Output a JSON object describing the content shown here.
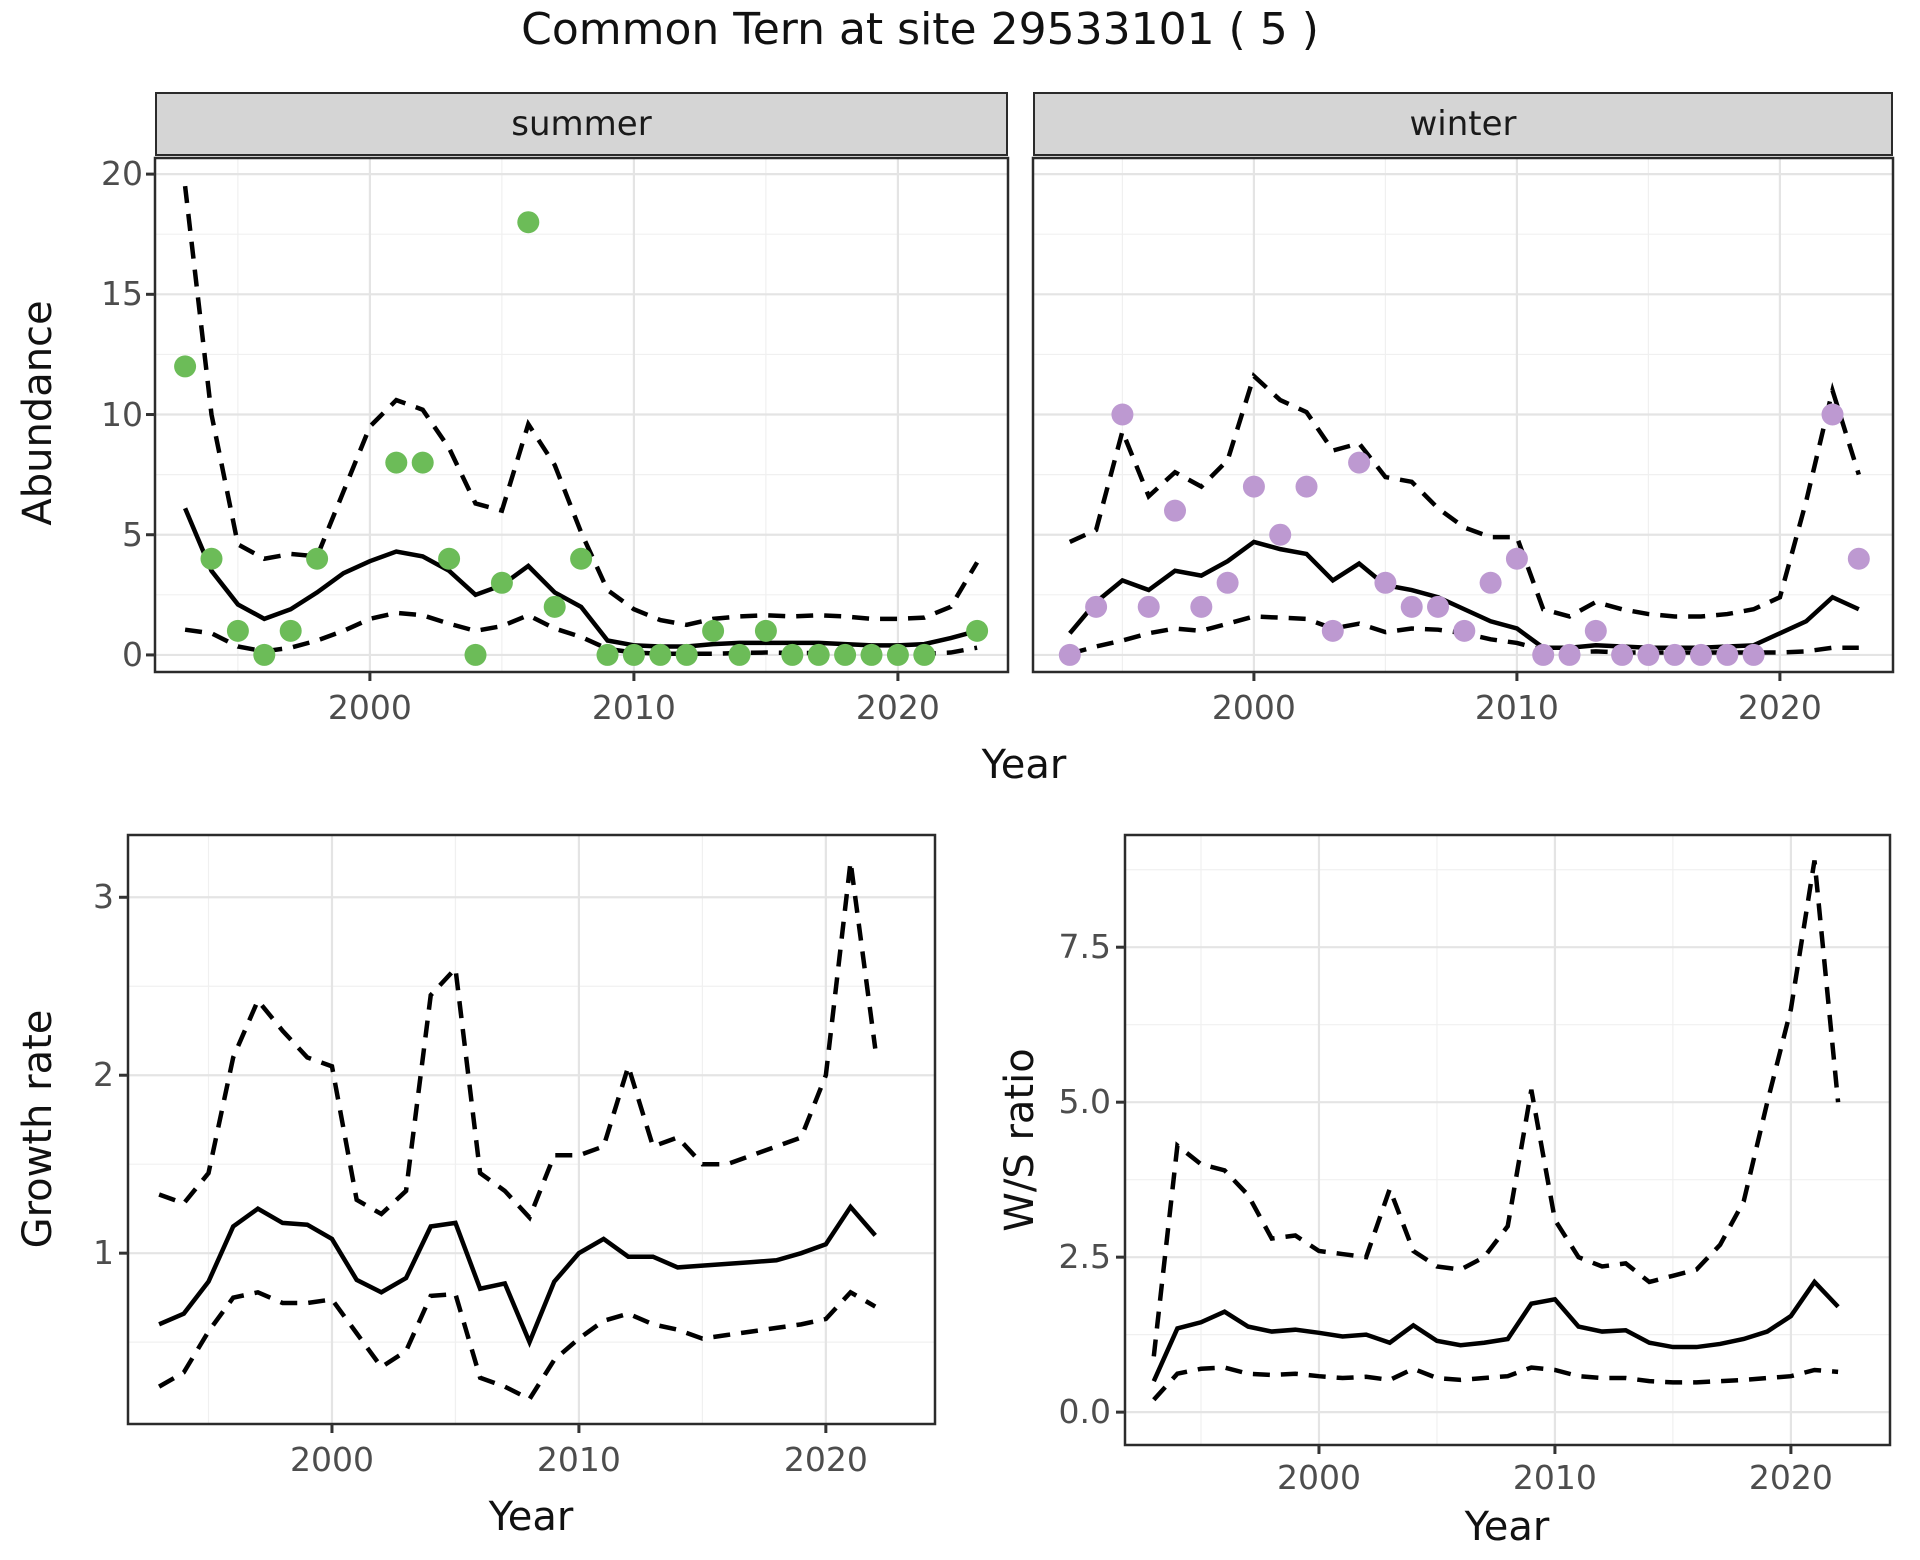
{
  "title": "Common Tern at site 29533101 ( 5 )",
  "axis_titles": {
    "x": "Year",
    "y_abundance": "Abundance",
    "y_growth": "Growth rate",
    "y_ws": "W/S ratio"
  },
  "facets": [
    {
      "label": "summer"
    },
    {
      "label": "winter"
    }
  ],
  "colors": {
    "summer_points": "#6cbc58",
    "winter_points": "#bd99d1",
    "line": "#000000",
    "panel_border": "#2b2b2b",
    "strip_bg": "#d5d5d5",
    "grid_major": "#e4e4e4",
    "grid_minor": "#f0f0f0",
    "axis_text": "#4d4d4d"
  },
  "chart_data": [
    {
      "type": "line",
      "name": "abundance-summer",
      "facet": "summer",
      "xlabel": "Year",
      "ylabel": "Abundance",
      "x": [
        1993,
        1994,
        1995,
        1996,
        1997,
        1998,
        1999,
        2000,
        2001,
        2002,
        2003,
        2004,
        2005,
        2006,
        2007,
        2008,
        2009,
        2010,
        2011,
        2012,
        2013,
        2014,
        2015,
        2016,
        2017,
        2018,
        2019,
        2020,
        2021,
        2022,
        2023
      ],
      "series": [
        {
          "name": "observed-counts",
          "style": "points",
          "color": "#6cbc58",
          "values": [
            12,
            4,
            1,
            0,
            1,
            4,
            null,
            null,
            8,
            8,
            4,
            0,
            3,
            18,
            2,
            4,
            0,
            0,
            0,
            0,
            1,
            0,
            1,
            0,
            0,
            0,
            0,
            0,
            0,
            null,
            1
          ]
        },
        {
          "name": "median",
          "style": "solid",
          "values": [
            6.1,
            3.5,
            2.1,
            1.5,
            1.9,
            2.6,
            3.4,
            3.9,
            4.3,
            4.1,
            3.5,
            2.5,
            2.9,
            3.7,
            2.6,
            2.0,
            0.6,
            0.4,
            0.35,
            0.35,
            0.45,
            0.5,
            0.5,
            0.5,
            0.5,
            0.45,
            0.4,
            0.4,
            0.45,
            0.7,
            1.0
          ]
        },
        {
          "name": "ci-upper",
          "style": "dashed",
          "values": [
            19.5,
            10.0,
            4.6,
            4.0,
            4.2,
            4.1,
            6.8,
            9.5,
            10.6,
            10.2,
            8.6,
            6.3,
            6.0,
            9.6,
            7.9,
            5.1,
            2.7,
            1.9,
            1.45,
            1.25,
            1.5,
            1.6,
            1.65,
            1.6,
            1.65,
            1.6,
            1.5,
            1.5,
            1.55,
            2.0,
            3.85
          ]
        },
        {
          "name": "ci-lower",
          "style": "dashed",
          "values": [
            1.05,
            0.9,
            0.35,
            0.15,
            0.3,
            0.6,
            1.0,
            1.5,
            1.75,
            1.65,
            1.3,
            1.0,
            1.2,
            1.65,
            1.1,
            0.75,
            0.25,
            0.1,
            0.05,
            0.05,
            0.05,
            0.08,
            0.1,
            0.08,
            0.08,
            0.05,
            0.05,
            0.05,
            0.05,
            0.1,
            0.3
          ]
        }
      ],
      "xlim": [
        1991.86,
        2024.17
      ],
      "ylim": [
        -0.71,
        20.67
      ],
      "xticks": [
        2000,
        2010,
        2020
      ],
      "xtick_labels": [
        "2000",
        "2010",
        "2020"
      ],
      "yticks": [
        0,
        5,
        10,
        15,
        20
      ],
      "ytick_labels": [
        "0",
        "5",
        "10",
        "15",
        "20"
      ],
      "minor_xticks": [
        1995,
        2005,
        2015
      ],
      "minor_yticks": [
        2.5,
        7.5,
        12.5,
        17.5
      ],
      "grid": true,
      "legend": "none"
    },
    {
      "type": "line",
      "name": "abundance-winter",
      "facet": "winter",
      "xlabel": "Year",
      "ylabel": "Abundance",
      "x": [
        1993,
        1994,
        1995,
        1996,
        1997,
        1998,
        1999,
        2000,
        2001,
        2002,
        2003,
        2004,
        2005,
        2006,
        2007,
        2008,
        2009,
        2010,
        2011,
        2012,
        2013,
        2014,
        2015,
        2016,
        2017,
        2018,
        2019,
        2020,
        2021,
        2022,
        2023
      ],
      "series": [
        {
          "name": "observed-counts",
          "style": "points",
          "color": "#bd99d1",
          "values": [
            0,
            2,
            10,
            2,
            6,
            2,
            3,
            7,
            5,
            7,
            1,
            8,
            3,
            2,
            2,
            1,
            3,
            4,
            0,
            0,
            1,
            0,
            0,
            0,
            0,
            0,
            0,
            null,
            null,
            10,
            4
          ]
        },
        {
          "name": "median",
          "style": "solid",
          "values": [
            0.9,
            2.2,
            3.1,
            2.7,
            3.5,
            3.3,
            3.9,
            4.7,
            4.4,
            4.2,
            3.1,
            3.8,
            2.9,
            2.7,
            2.4,
            1.9,
            1.4,
            1.1,
            0.3,
            0.3,
            0.4,
            0.35,
            0.3,
            0.3,
            0.3,
            0.35,
            0.4,
            0.9,
            1.4,
            2.4,
            1.9
          ]
        },
        {
          "name": "ci-upper",
          "style": "dashed",
          "values": [
            4.7,
            5.2,
            9.3,
            6.6,
            7.6,
            7.0,
            8.1,
            11.6,
            10.6,
            10.1,
            8.5,
            8.8,
            7.4,
            7.2,
            6.1,
            5.3,
            4.9,
            4.9,
            1.9,
            1.6,
            2.2,
            1.9,
            1.7,
            1.6,
            1.6,
            1.7,
            1.9,
            2.4,
            6.4,
            11.0,
            7.5
          ]
        },
        {
          "name": "ci-lower",
          "style": "dashed",
          "values": [
            0.05,
            0.35,
            0.6,
            0.9,
            1.1,
            1.0,
            1.3,
            1.6,
            1.55,
            1.5,
            1.1,
            1.3,
            0.95,
            1.1,
            1.05,
            0.9,
            0.65,
            0.5,
            0.2,
            0.1,
            0.15,
            0.1,
            0.1,
            0.1,
            0.1,
            0.1,
            0.1,
            0.1,
            0.15,
            0.3,
            0.3
          ]
        }
      ],
      "xlim": [
        1991.6,
        2024.3
      ],
      "ylim": [
        -0.71,
        20.67
      ],
      "xticks": [
        2000,
        2010,
        2020
      ],
      "xtick_labels": [
        "2000",
        "2010",
        "2020"
      ],
      "yticks": [],
      "ytick_labels": [],
      "minor_xticks": [
        1995,
        2005,
        2015
      ],
      "minor_yticks": [
        2.5,
        7.5,
        12.5,
        17.5
      ],
      "grid": true,
      "legend": "none"
    },
    {
      "type": "line",
      "name": "growth-rate",
      "facet": null,
      "xlabel": "Year",
      "ylabel": "Growth rate",
      "x": [
        1993,
        1994,
        1995,
        1996,
        1997,
        1998,
        1999,
        2000,
        2001,
        2002,
        2003,
        2004,
        2005,
        2006,
        2007,
        2008,
        2009,
        2010,
        2011,
        2012,
        2013,
        2014,
        2015,
        2016,
        2017,
        2018,
        2019,
        2020,
        2021,
        2022
      ],
      "series": [
        {
          "name": "median",
          "style": "solid",
          "values": [
            0.6,
            0.66,
            0.84,
            1.15,
            1.25,
            1.17,
            1.16,
            1.08,
            0.85,
            0.78,
            0.86,
            1.15,
            1.17,
            0.8,
            0.83,
            0.5,
            0.84,
            1.0,
            1.08,
            0.98,
            0.98,
            0.92,
            0.93,
            0.94,
            0.95,
            0.96,
            1.0,
            1.05,
            1.26,
            1.1
          ]
        },
        {
          "name": "ci-upper",
          "style": "dashed",
          "values": [
            1.33,
            1.28,
            1.45,
            2.1,
            2.42,
            2.25,
            2.1,
            2.05,
            1.3,
            1.22,
            1.35,
            2.45,
            2.6,
            1.45,
            1.35,
            1.2,
            1.55,
            1.55,
            1.6,
            2.05,
            1.6,
            1.65,
            1.5,
            1.5,
            1.55,
            1.6,
            1.65,
            2.0,
            3.2,
            2.15
          ]
        },
        {
          "name": "ci-lower",
          "style": "dashed",
          "values": [
            0.25,
            0.33,
            0.56,
            0.75,
            0.78,
            0.72,
            0.72,
            0.74,
            0.55,
            0.36,
            0.45,
            0.76,
            0.77,
            0.3,
            0.25,
            0.18,
            0.4,
            0.52,
            0.62,
            0.66,
            0.6,
            0.57,
            0.52,
            0.54,
            0.56,
            0.58,
            0.6,
            0.63,
            0.78,
            0.7
          ]
        }
      ],
      "xlim": [
        1991.74,
        2024.42
      ],
      "ylim": [
        0.04,
        3.35
      ],
      "xticks": [
        2000,
        2010,
        2020
      ],
      "xtick_labels": [
        "2000",
        "2010",
        "2020"
      ],
      "yticks": [
        1,
        2,
        3
      ],
      "ytick_labels": [
        "1",
        "2",
        "3"
      ],
      "minor_xticks": [
        1995,
        2005,
        2015
      ],
      "minor_yticks": [
        0.5,
        1.5,
        2.5
      ],
      "grid": true,
      "legend": "none"
    },
    {
      "type": "line",
      "name": "winter-summer-ratio",
      "facet": null,
      "xlabel": "Year",
      "ylabel": "W/S ratio",
      "x": [
        1993,
        1994,
        1995,
        1996,
        1997,
        1998,
        1999,
        2000,
        2001,
        2002,
        2003,
        2004,
        2005,
        2006,
        2007,
        2008,
        2009,
        2010,
        2011,
        2012,
        2013,
        2014,
        2015,
        2016,
        2017,
        2018,
        2019,
        2020,
        2021,
        2022
      ],
      "series": [
        {
          "name": "median",
          "style": "solid",
          "values": [
            0.5,
            1.35,
            1.45,
            1.62,
            1.38,
            1.3,
            1.33,
            1.28,
            1.22,
            1.25,
            1.12,
            1.4,
            1.15,
            1.08,
            1.12,
            1.18,
            1.75,
            1.82,
            1.38,
            1.3,
            1.32,
            1.12,
            1.05,
            1.05,
            1.1,
            1.18,
            1.3,
            1.55,
            2.1,
            1.7
          ]
        },
        {
          "name": "ci-upper",
          "style": "dashed",
          "values": [
            0.9,
            4.3,
            4.0,
            3.9,
            3.5,
            2.8,
            2.85,
            2.6,
            2.55,
            2.5,
            3.6,
            2.6,
            2.35,
            2.3,
            2.5,
            3.0,
            5.2,
            3.1,
            2.5,
            2.35,
            2.4,
            2.1,
            2.2,
            2.3,
            2.7,
            3.4,
            5.0,
            6.5,
            8.9,
            5.0
          ]
        },
        {
          "name": "ci-lower",
          "style": "dashed",
          "values": [
            0.2,
            0.62,
            0.7,
            0.72,
            0.62,
            0.6,
            0.62,
            0.58,
            0.55,
            0.57,
            0.52,
            0.7,
            0.55,
            0.52,
            0.55,
            0.58,
            0.72,
            0.68,
            0.58,
            0.55,
            0.55,
            0.5,
            0.48,
            0.48,
            0.5,
            0.52,
            0.55,
            0.58,
            0.68,
            0.65
          ]
        }
      ],
      "xlim": [
        1991.78,
        2024.2
      ],
      "ylim": [
        -0.53,
        9.31
      ],
      "xticks": [
        2000,
        2010,
        2020
      ],
      "xtick_labels": [
        "2000",
        "2010",
        "2020"
      ],
      "yticks": [
        0,
        2.5,
        5,
        7.5
      ],
      "ytick_labels": [
        "0.0",
        "2.5",
        "5.0",
        "7.5"
      ],
      "minor_xticks": [
        1995,
        2005,
        2015
      ],
      "minor_yticks": [
        1.25,
        3.75,
        6.25,
        8.75
      ],
      "grid": true,
      "legend": "none"
    }
  ]
}
